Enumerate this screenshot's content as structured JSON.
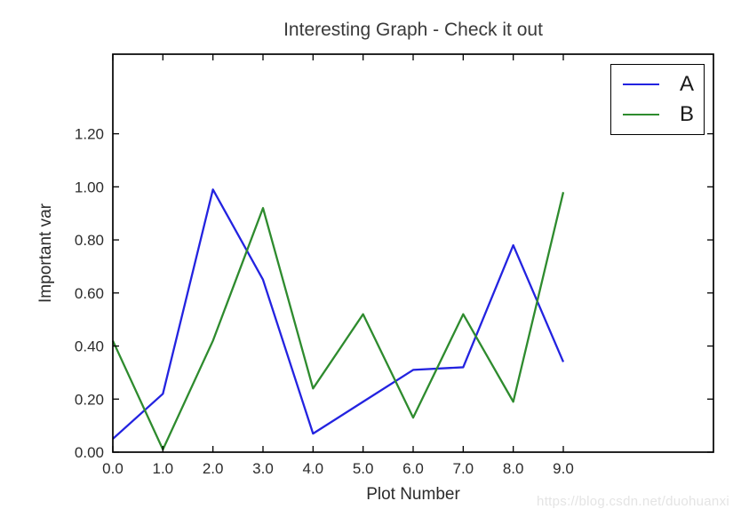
{
  "watermark": "https://blog.csdn.net/duohuanxi",
  "chart_data": {
    "type": "line",
    "title": "Interesting Graph - Check it out",
    "xlabel": "Plot Number",
    "ylabel": "Important var",
    "x": [
      0,
      1,
      2,
      3,
      4,
      5,
      6,
      7,
      8,
      9
    ],
    "series": [
      {
        "name": "A",
        "color": "#2323e0",
        "values": [
          0.05,
          0.22,
          0.99,
          0.65,
          0.07,
          0.19,
          0.31,
          0.32,
          0.78,
          0.34
        ]
      },
      {
        "name": "B",
        "color": "#2e8b2e",
        "values": [
          0.42,
          0.01,
          0.42,
          0.92,
          0.24,
          0.52,
          0.13,
          0.52,
          0.19,
          0.98
        ]
      }
    ],
    "xlim": [
      0,
      12
    ],
    "ylim": [
      0,
      1.5
    ],
    "xtick_values": [
      0,
      1,
      2,
      3,
      4,
      5,
      6,
      7,
      8,
      9
    ],
    "xtick_labels": [
      "0.0",
      "1.0",
      "2.0",
      "3.0",
      "4.0",
      "5.0",
      "6.0",
      "7.0",
      "8.0",
      "9.0"
    ],
    "ytick_values": [
      0,
      0.2,
      0.4,
      0.6,
      0.8,
      1.0,
      1.2
    ],
    "ytick_labels": [
      "0.00",
      "0.20",
      "0.40",
      "0.60",
      "0.80",
      "1.00",
      "1.20"
    ],
    "legend": {
      "position": "upper right",
      "entries": [
        "A",
        "B"
      ]
    },
    "grid": false,
    "axis_color": "#000000",
    "tick_label_color": "#2b2b2b"
  }
}
